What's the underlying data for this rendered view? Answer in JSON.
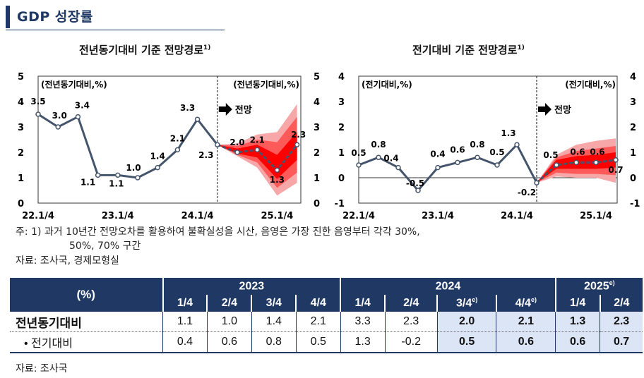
{
  "page": {
    "title": "GDP 성장률"
  },
  "left_chart": {
    "title": "전년동기대비 기준 전망경로",
    "title_sup": "1)",
    "unit_left": "(전년동기대비,%)",
    "unit_right": "(전년동기대비,%)",
    "forecast_label": "전망"
  },
  "right_chart": {
    "title": "전기대비 기준 전망경로",
    "title_sup": "1)",
    "unit_left": "(전기대비,%)",
    "unit_right": "(전기대비,%)",
    "forecast_label": "전망"
  },
  "notes": {
    "note1_line1": "주: 1) 과거 10년간 전망오차를 활용하여 불확실성을 시산, 음영은 가장 진한 음영부터 각각 30%,",
    "note1_line2": "50%, 70% 구간",
    "source1": "자료: 조사국, 경제모형실",
    "source2": "자료: 조사국"
  },
  "table": {
    "unit_label": "(%)",
    "years": [
      {
        "label": "2023",
        "sup": ""
      },
      {
        "label": "2024",
        "sup": ""
      },
      {
        "label": "2025",
        "sup": "e)"
      }
    ],
    "quarters": [
      {
        "label": "1/4",
        "sup": ""
      },
      {
        "label": "2/4",
        "sup": ""
      },
      {
        "label": "3/4",
        "sup": ""
      },
      {
        "label": "4/4",
        "sup": ""
      },
      {
        "label": "1/4",
        "sup": ""
      },
      {
        "label": "2/4",
        "sup": ""
      },
      {
        "label": "3/4",
        "sup": "e)"
      },
      {
        "label": "4/4",
        "sup": "e)"
      },
      {
        "label": "1/4",
        "sup": ""
      },
      {
        "label": "2/4",
        "sup": ""
      }
    ],
    "rows": [
      {
        "label": "전년동기대비",
        "values": [
          "1.1",
          "1.0",
          "1.4",
          "2.1",
          "3.3",
          "2.3",
          "2.0",
          "2.1",
          "1.3",
          "2.3"
        ]
      },
      {
        "label": "• 전기대비",
        "values": [
          "0.4",
          "0.6",
          "0.8",
          "0.5",
          "1.3",
          "-0.2",
          "0.5",
          "0.6",
          "0.6",
          "0.7"
        ]
      }
    ]
  },
  "chart_data": [
    {
      "type": "line",
      "title": "전년동기대비 기준 전망경로",
      "ylabel": "(전년동기대비,%)",
      "ylim": [
        0,
        5
      ],
      "yticks": [
        "0",
        "1",
        "2",
        "3",
        "4",
        "5"
      ],
      "x_tick_labels": [
        "22.1/4",
        "23.1/4",
        "24.1/4",
        "25.1/4"
      ],
      "x": [
        "22.1/4",
        "22.2/4",
        "22.3/4",
        "22.4/4",
        "23.1/4",
        "23.2/4",
        "23.3/4",
        "23.4/4",
        "24.1/4",
        "24.2/4",
        "24.3/4",
        "24.4/4",
        "25.1/4",
        "25.2/4"
      ],
      "series": [
        {
          "values": [
            3.5,
            3.0,
            3.4,
            1.1,
            1.1,
            1.0,
            1.4,
            2.1,
            3.3,
            2.3,
            2.0,
            2.1,
            1.3,
            2.3
          ],
          "labels": [
            "3.5",
            "3.0",
            "3.4",
            "1.1",
            "1.1",
            "1.0",
            "1.4",
            "2.1",
            "3.3",
            "2.3",
            "2.0",
            "2.1",
            "1.3",
            "2.3"
          ],
          "forecast_start_index": 9
        }
      ],
      "fan": {
        "x_start_index": 9,
        "band70": {
          "low": [
            2.3,
            1.85,
            1.4,
            0.3,
            0.8
          ],
          "high": [
            2.3,
            2.35,
            2.7,
            2.8,
            3.9
          ]
        },
        "band50": {
          "low": [
            2.3,
            1.9,
            1.6,
            0.6,
            1.2
          ],
          "high": [
            2.3,
            2.25,
            2.5,
            2.4,
            3.4
          ]
        },
        "band30": {
          "low": [
            2.3,
            1.95,
            1.8,
            0.95,
            1.7
          ],
          "high": [
            2.3,
            2.15,
            2.3,
            1.9,
            2.8
          ]
        }
      },
      "grid": false,
      "colors": {
        "line": "#44546a",
        "band30": "#ff0000",
        "band50": "#ff5a5a",
        "band70": "#f7a7a7"
      }
    },
    {
      "type": "line",
      "title": "전기대비 기준 전망경로",
      "ylabel": "(전기대비,%)",
      "ylim": [
        -1,
        4
      ],
      "yticks": [
        "-1",
        "0",
        "1",
        "2",
        "3",
        "4"
      ],
      "x_tick_labels": [
        "22.1/4",
        "23.1/4",
        "24.1/4",
        "25.1/4"
      ],
      "x": [
        "22.1/4",
        "22.2/4",
        "22.3/4",
        "22.4/4",
        "23.1/4",
        "23.2/4",
        "23.3/4",
        "23.4/4",
        "24.1/4",
        "24.2/4",
        "24.3/4",
        "24.4/4",
        "25.1/4",
        "25.2/4"
      ],
      "series": [
        {
          "values": [
            0.5,
            0.8,
            0.4,
            -0.5,
            0.4,
            0.6,
            0.8,
            0.5,
            1.3,
            -0.2,
            0.5,
            0.6,
            0.6,
            0.7
          ],
          "labels": [
            "0.5",
            "0.8",
            "0.4",
            "-0.5",
            "0.4",
            "0.6",
            "0.8",
            "0.5",
            "1.3",
            "-0.2",
            "0.5",
            "0.6",
            "0.6",
            "0.7"
          ],
          "forecast_start_index": 9
        }
      ],
      "fan": {
        "x_start_index": 9,
        "band70": {
          "low": [
            -0.2,
            0.05,
            0.0,
            0.0,
            -0.2
          ],
          "high": [
            -0.2,
            0.9,
            1.3,
            1.45,
            1.55
          ]
        },
        "band50": {
          "low": [
            -0.2,
            0.2,
            0.15,
            0.15,
            0.1
          ],
          "high": [
            -0.2,
            0.8,
            1.05,
            1.15,
            1.25
          ]
        },
        "band30": {
          "low": [
            -0.2,
            0.35,
            0.35,
            0.35,
            0.4
          ],
          "high": [
            -0.2,
            0.7,
            0.85,
            0.9,
            1.0
          ]
        }
      },
      "zero_line": true,
      "grid": false,
      "colors": {
        "line": "#44546a",
        "band30": "#ff0000",
        "band50": "#ff5a5a",
        "band70": "#f7a7a7"
      }
    }
  ]
}
